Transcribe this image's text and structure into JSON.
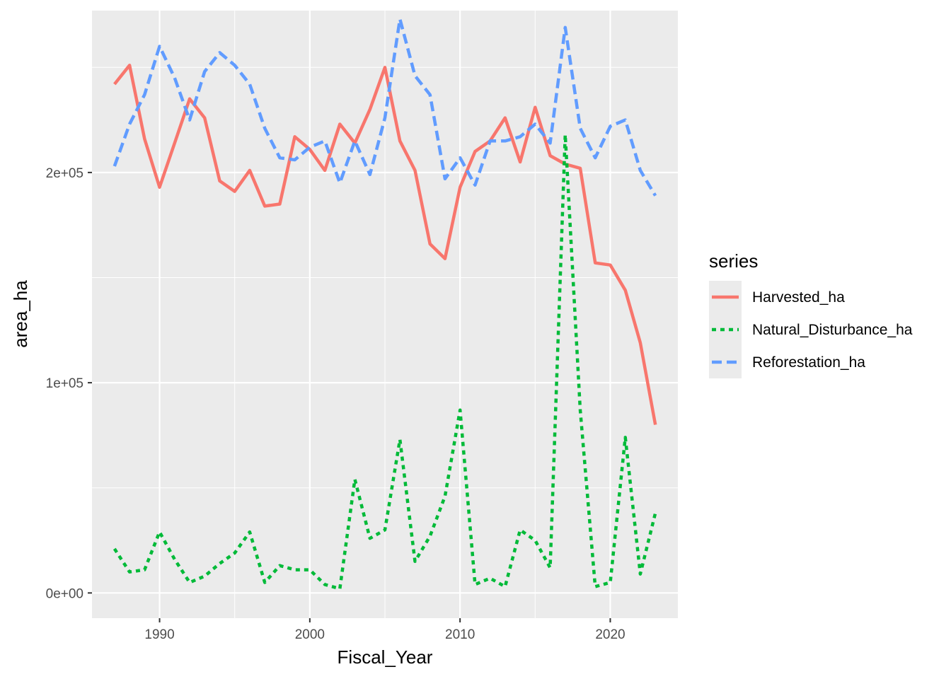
{
  "chart_data": {
    "type": "line",
    "xlabel": "Fiscal_Year",
    "ylabel": "area_ha",
    "xlim": [
      1985.5,
      2024.5
    ],
    "ylim": [
      -12000,
      277000
    ],
    "x_ticks": [
      1990,
      2000,
      2010,
      2020
    ],
    "x_tick_labels": [
      "1990",
      "2000",
      "2010",
      "2020"
    ],
    "y_ticks": [
      0,
      100000,
      200000
    ],
    "y_tick_labels": [
      "0e+00",
      "1e+05",
      "2e+05"
    ],
    "grid": true,
    "legend": {
      "title": "series",
      "position": "right"
    },
    "x": [
      1987,
      1988,
      1989,
      1990,
      1991,
      1992,
      1993,
      1994,
      1995,
      1996,
      1997,
      1998,
      1999,
      2000,
      2001,
      2002,
      2003,
      2004,
      2005,
      2006,
      2007,
      2008,
      2009,
      2010,
      2011,
      2012,
      2013,
      2014,
      2015,
      2016,
      2017,
      2018,
      2019,
      2020,
      2021,
      2022,
      2023
    ],
    "series": [
      {
        "name": "Harvested_ha",
        "color": "#F8766D",
        "dash": "solid",
        "values": [
          242000,
          251000,
          216000,
          193000,
          214000,
          235000,
          226000,
          196000,
          191000,
          201000,
          184000,
          185000,
          217000,
          211000,
          201000,
          223000,
          214000,
          230000,
          250000,
          215000,
          201000,
          166000,
          159000,
          193000,
          210000,
          215000,
          226000,
          205000,
          231000,
          208000,
          204000,
          202000,
          157000,
          156000,
          144000,
          119000,
          80000
        ]
      },
      {
        "name": "Natural_Disturbance_ha",
        "color": "#00BA38",
        "dash": "dotted",
        "values": [
          21000,
          10000,
          11000,
          29000,
          16000,
          5000,
          8000,
          14000,
          19000,
          29000,
          5000,
          13000,
          11000,
          11000,
          4000,
          2000,
          54000,
          26000,
          30000,
          73000,
          15000,
          27000,
          46000,
          87000,
          4000,
          7000,
          3000,
          30000,
          25000,
          12000,
          218000,
          87000,
          3000,
          5000,
          74000,
          9000,
          38000
        ]
      },
      {
        "name": "Reforestation_ha",
        "color": "#619CFF",
        "dash": "dashed",
        "values": [
          203000,
          223000,
          237000,
          260000,
          245000,
          225000,
          248000,
          257000,
          251000,
          242000,
          221000,
          207000,
          206000,
          212000,
          215000,
          195000,
          215000,
          199000,
          226000,
          273000,
          246000,
          237000,
          197000,
          207000,
          194000,
          215000,
          215000,
          217000,
          223000,
          214000,
          269000,
          221000,
          207000,
          222000,
          225000,
          201000,
          189000
        ]
      }
    ]
  }
}
